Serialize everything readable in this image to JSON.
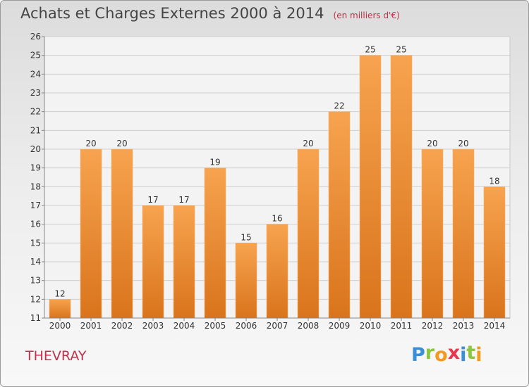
{
  "chart_data": {
    "type": "bar",
    "title": "Achats et Charges Externes 2000 à 2014",
    "subtitle": "(en milliers d'€)",
    "categories": [
      "2000",
      "2001",
      "2002",
      "2003",
      "2004",
      "2005",
      "2006",
      "2007",
      "2008",
      "2009",
      "2010",
      "2011",
      "2012",
      "2013",
      "2014"
    ],
    "values": [
      12,
      20,
      20,
      17,
      17,
      19,
      15,
      16,
      20,
      22,
      25,
      25,
      20,
      20,
      18
    ],
    "y_ticks": [
      11,
      12,
      13,
      14,
      15,
      16,
      17,
      18,
      19,
      20,
      21,
      22,
      23,
      24,
      25,
      26
    ],
    "ylim": [
      11,
      26
    ],
    "xlabel": "",
    "ylabel": "",
    "grid": true,
    "legend": "none",
    "colors": {
      "bar_light": "#f7a34f",
      "bar_dark": "#d9741c",
      "grid": "#cfcfcf",
      "axis_text": "#333333"
    }
  },
  "footer": {
    "place": "THEVRAY",
    "brand_letters": [
      {
        "ch": "P",
        "color": "#3a8fd6"
      },
      {
        "ch": "r",
        "color": "#8cc63f"
      },
      {
        "ch": "o",
        "color": "#f39a1e"
      },
      {
        "ch": "x",
        "color": "#e8364f"
      },
      {
        "ch": "i",
        "color": "#3a8fd6"
      },
      {
        "ch": "t",
        "color": "#8cc63f"
      },
      {
        "ch": "i",
        "color": "#f39a1e"
      }
    ]
  }
}
